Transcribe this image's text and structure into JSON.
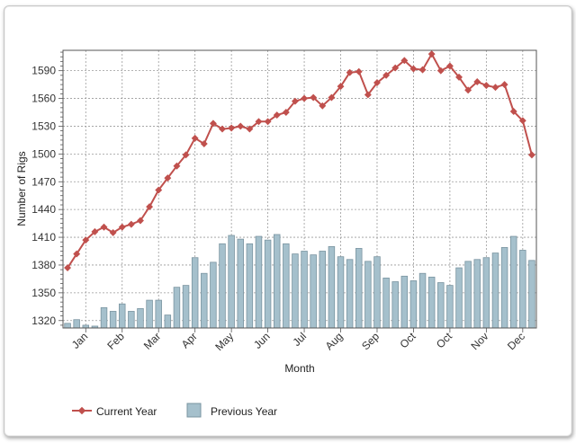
{
  "chart_data": {
    "type": "bar+line",
    "title": "",
    "xlabel": "Month",
    "ylabel": "Number of Rigs",
    "ylim": [
      1312,
      1612
    ],
    "yticks": [
      1320,
      1350,
      1380,
      1410,
      1440,
      1470,
      1500,
      1530,
      1560,
      1590
    ],
    "xticks": [
      {
        "label": "Jan",
        "index": 2
      },
      {
        "label": "Feb",
        "index": 6
      },
      {
        "label": "Mar",
        "index": 10
      },
      {
        "label": "Apr",
        "index": 14
      },
      {
        "label": "May",
        "index": 18
      },
      {
        "label": "Jun",
        "index": 22
      },
      {
        "label": "Jul",
        "index": 26
      },
      {
        "label": "Aug",
        "index": 30
      },
      {
        "label": "Sep",
        "index": 34
      },
      {
        "label": "Oct",
        "index": 38
      },
      {
        "label": "Oct",
        "index": 42
      },
      {
        "label": "Nov",
        "index": 46
      },
      {
        "label": "Dec",
        "index": 50
      }
    ],
    "grid": true,
    "legend_position": "bottom",
    "series": [
      {
        "name": "Current Year",
        "type": "line",
        "color": "#c0504d",
        "values": [
          1377,
          1392,
          1407,
          1416,
          1421,
          1415,
          1421,
          1424,
          1428,
          1443,
          1461,
          1474,
          1487,
          1499,
          1517,
          1511,
          1533,
          1527,
          1528,
          1530,
          1527,
          1535,
          1535,
          1542,
          1545,
          1557,
          1560,
          1561,
          1552,
          1561,
          1573,
          1588,
          1589,
          1564,
          1577,
          1585,
          1593,
          1601,
          1592,
          1591,
          1608,
          1590,
          1595,
          1583,
          1569,
          1578,
          1574,
          1572,
          1575,
          1546,
          1536,
          1499
        ]
      },
      {
        "name": "Previous Year",
        "type": "bar",
        "color": "#a5c0cc",
        "values": [
          1317,
          1321,
          1315,
          1314,
          1334,
          1330,
          1338,
          1330,
          1333,
          1342,
          1342,
          1326,
          1356,
          1358,
          1388,
          1371,
          1383,
          1403,
          1412,
          1408,
          1403,
          1411,
          1407,
          1413,
          1403,
          1392,
          1395,
          1391,
          1395,
          1400,
          1389,
          1386,
          1398,
          1384,
          1389,
          1366,
          1362,
          1368,
          1363,
          1371,
          1367,
          1361,
          1358,
          1377,
          1384,
          1386,
          1388,
          1393,
          1399,
          1411,
          1396,
          1385
        ]
      }
    ]
  },
  "legend": {
    "current_label": "Current Year",
    "previous_label": "Previous Year"
  }
}
